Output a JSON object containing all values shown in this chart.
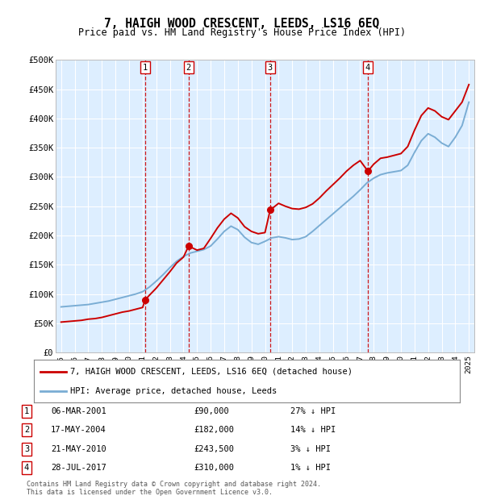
{
  "title": "7, HAIGH WOOD CRESCENT, LEEDS, LS16 6EQ",
  "subtitle": "Price paid vs. HM Land Registry's House Price Index (HPI)",
  "background_color": "#ffffff",
  "plot_bg_color": "#ddeeff",
  "grid_color": "#ffffff",
  "ylim": [
    0,
    500000
  ],
  "yticks": [
    0,
    50000,
    100000,
    150000,
    200000,
    250000,
    300000,
    350000,
    400000,
    450000,
    500000
  ],
  "ytick_labels": [
    "£0",
    "£50K",
    "£100K",
    "£150K",
    "£200K",
    "£250K",
    "£300K",
    "£350K",
    "£400K",
    "£450K",
    "£500K"
  ],
  "sale_dates": [
    2001.18,
    2004.38,
    2010.38,
    2017.57
  ],
  "sale_prices": [
    90000,
    182000,
    243500,
    310000
  ],
  "sale_labels": [
    "1",
    "2",
    "3",
    "4"
  ],
  "vline_color": "#cc0000",
  "sale_dot_color": "#cc0000",
  "hpi_line_color": "#7aadd4",
  "price_line_color": "#cc0000",
  "legend_entries": [
    "7, HAIGH WOOD CRESCENT, LEEDS, LS16 6EQ (detached house)",
    "HPI: Average price, detached house, Leeds"
  ],
  "table_data": [
    [
      "1",
      "06-MAR-2001",
      "£90,000",
      "27% ↓ HPI"
    ],
    [
      "2",
      "17-MAY-2004",
      "£182,000",
      "14% ↓ HPI"
    ],
    [
      "3",
      "21-MAY-2010",
      "£243,500",
      "3% ↓ HPI"
    ],
    [
      "4",
      "28-JUL-2017",
      "£310,000",
      "1% ↓ HPI"
    ]
  ],
  "footer": "Contains HM Land Registry data © Crown copyright and database right 2024.\nThis data is licensed under the Open Government Licence v3.0.",
  "hpi_data_x": [
    1995.0,
    1995.5,
    1996.0,
    1996.5,
    1997.0,
    1997.5,
    1998.0,
    1998.5,
    1999.0,
    1999.5,
    2000.0,
    2000.5,
    2001.0,
    2001.5,
    2002.0,
    2002.5,
    2003.0,
    2003.5,
    2004.0,
    2004.5,
    2005.0,
    2005.5,
    2006.0,
    2006.5,
    2007.0,
    2007.5,
    2008.0,
    2008.5,
    2009.0,
    2009.5,
    2010.0,
    2010.5,
    2011.0,
    2011.5,
    2012.0,
    2012.5,
    2013.0,
    2013.5,
    2014.0,
    2014.5,
    2015.0,
    2015.5,
    2016.0,
    2016.5,
    2017.0,
    2017.5,
    2018.0,
    2018.5,
    2019.0,
    2019.5,
    2020.0,
    2020.5,
    2021.0,
    2021.5,
    2022.0,
    2022.5,
    2023.0,
    2023.5,
    2024.0,
    2024.5,
    2025.0
  ],
  "hpi_data_y": [
    78000,
    79000,
    80000,
    81000,
    82000,
    84000,
    86000,
    88000,
    91000,
    94000,
    97000,
    100000,
    104000,
    112000,
    122000,
    133000,
    145000,
    156000,
    164000,
    170000,
    173000,
    176000,
    182000,
    194000,
    207000,
    216000,
    210000,
    197000,
    188000,
    185000,
    190000,
    196000,
    198000,
    196000,
    193000,
    194000,
    198000,
    207000,
    217000,
    227000,
    237000,
    247000,
    257000,
    267000,
    278000,
    290000,
    298000,
    304000,
    307000,
    309000,
    311000,
    320000,
    342000,
    362000,
    374000,
    368000,
    358000,
    352000,
    368000,
    388000,
    428000
  ],
  "price_data_x": [
    1995.0,
    1995.5,
    1996.0,
    1996.5,
    1997.0,
    1997.5,
    1998.0,
    1998.5,
    1999.0,
    1999.5,
    2000.0,
    2000.5,
    2001.0,
    2001.18,
    2001.5,
    2002.0,
    2002.5,
    2003.0,
    2003.5,
    2004.0,
    2004.38,
    2005.0,
    2005.5,
    2006.0,
    2006.5,
    2007.0,
    2007.5,
    2008.0,
    2008.5,
    2009.0,
    2009.5,
    2010.0,
    2010.38,
    2011.0,
    2011.5,
    2012.0,
    2012.5,
    2013.0,
    2013.5,
    2014.0,
    2014.5,
    2015.0,
    2015.5,
    2016.0,
    2016.5,
    2017.0,
    2017.57,
    2018.0,
    2018.5,
    2019.0,
    2019.5,
    2020.0,
    2020.5,
    2021.0,
    2021.5,
    2022.0,
    2022.5,
    2023.0,
    2023.5,
    2024.0,
    2024.5,
    2025.0
  ],
  "price_data_y": [
    52000,
    53000,
    54000,
    55000,
    57000,
    58000,
    60000,
    63000,
    66000,
    69000,
    71000,
    74000,
    77000,
    90000,
    98000,
    110000,
    124000,
    138000,
    153000,
    163000,
    182000,
    175000,
    178000,
    195000,
    213000,
    228000,
    238000,
    230000,
    215000,
    207000,
    203000,
    205000,
    243500,
    255000,
    250000,
    246000,
    245000,
    248000,
    254000,
    264000,
    276000,
    287000,
    298000,
    310000,
    320000,
    328000,
    310000,
    322000,
    332000,
    334000,
    337000,
    340000,
    352000,
    380000,
    405000,
    418000,
    413000,
    403000,
    398000,
    413000,
    428000,
    458000
  ]
}
